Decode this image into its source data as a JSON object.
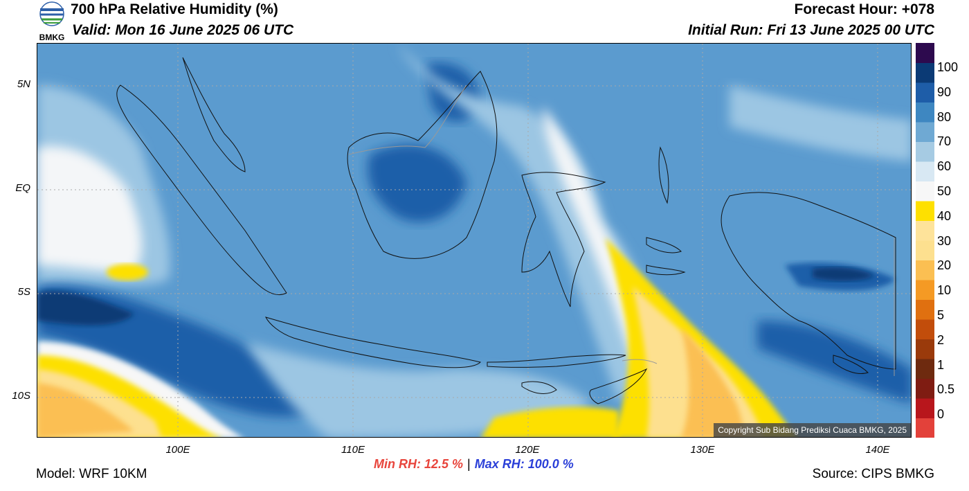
{
  "header": {
    "title": "700 hPa Relative Humidity (%)",
    "valid": "Valid: Mon 16 June 2025 06 UTC",
    "forecast_hour": "Forecast Hour: +078",
    "initial_run": "Initial Run: Fri 13 June 2025 00 UTC"
  },
  "logo": {
    "text": "BMKG",
    "colors": {
      "blue": "#2d5fa8",
      "green": "#3a9c3a"
    }
  },
  "map": {
    "lat_labels": [
      "5N",
      "EQ",
      "5S",
      "10S"
    ],
    "lon_labels": [
      "100E",
      "110E",
      "120E",
      "130E",
      "140E"
    ],
    "copyright": "Copyright Sub Bidang Prediksi Cuaca BMKG, 2025"
  },
  "colorbar": {
    "labels": [
      "100",
      "90",
      "80",
      "70",
      "60",
      "50",
      "40",
      "30",
      "20",
      "10",
      "5",
      "2",
      "1",
      "0.5",
      "0"
    ],
    "colors": [
      "#e3413a",
      "#b8161c",
      "#7f1c12",
      "#6e2a0f",
      "#9a3a0b",
      "#c24d0b",
      "#e07010",
      "#f59a24",
      "#fbbf52",
      "#fde08f",
      "#fee39a",
      "#fee000",
      "#f7f7f7",
      "#d8e8f3",
      "#a6cbe3",
      "#6fa9d3",
      "#3e87c1",
      "#1e5da8",
      "#0b3a75",
      "#2d0a4e"
    ]
  },
  "stats": {
    "min_rh": "Min RH:  12.5 %",
    "separator": "|",
    "max_rh": "Max RH: 100.0 %"
  },
  "footer": {
    "model": "Model: WRF 10KM",
    "source": "Source: CIPS BMKG"
  }
}
